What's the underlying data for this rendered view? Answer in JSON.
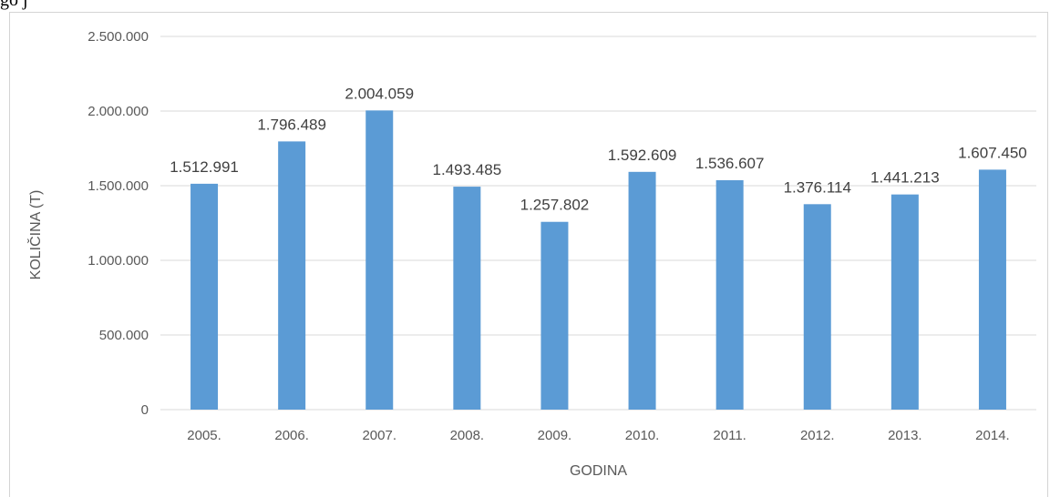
{
  "page": {
    "top_text": "go     j"
  },
  "chart_data": {
    "type": "bar",
    "categories": [
      "2005.",
      "2006.",
      "2007.",
      "2008.",
      "2009.",
      "2010.",
      "2011.",
      "2012.",
      "2013.",
      "2014."
    ],
    "values": [
      1512991,
      1796489,
      2004059,
      1493485,
      1257802,
      1592609,
      1536607,
      1376114,
      1441213,
      1607450
    ],
    "value_labels": [
      "1.512.991",
      "1.796.489",
      "2.004.059",
      "1.493.485",
      "1.257.802",
      "1.592.609",
      "1.536.607",
      "1.376.114",
      "1.441.213",
      "1.607.450"
    ],
    "y_ticks": [
      0,
      500000,
      1000000,
      1500000,
      2000000,
      2500000
    ],
    "y_tick_labels": [
      "0",
      "500.000",
      "1.000.000",
      "1.500.000",
      "2.000.000",
      "2.500.000"
    ],
    "ylim": [
      0,
      2500000
    ],
    "xlabel": "GODINA",
    "ylabel": "KOLIČINA (T)",
    "grid": true,
    "colors": {
      "bar": "#5b9bd5",
      "grid": "#d9d9d9",
      "axis": "#d9d9d9"
    }
  }
}
